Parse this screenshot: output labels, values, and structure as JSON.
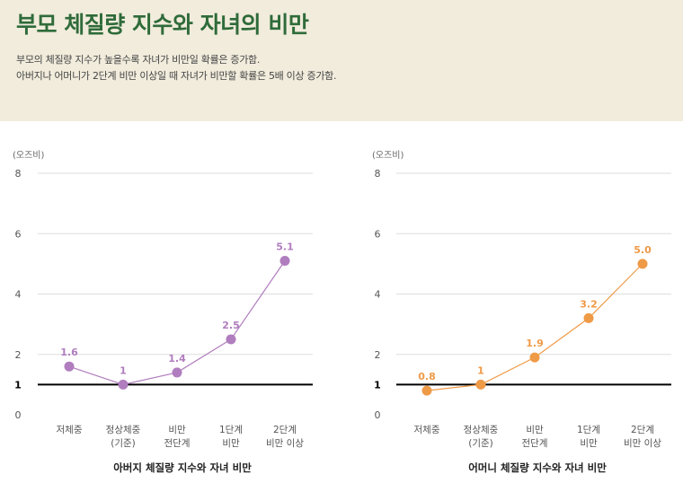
{
  "header": {
    "title": "부모 체질량 지수와 자녀의 비만",
    "desc_line1": "부모의 체질량 지수가 높을수록 자녀가 비만일 확률은 증가함.",
    "desc_line2": "아버지나 어머니가 2단계 비만 이상일 때 자녀가 비만할 확률은 5배 이상 증가함."
  },
  "colors": {
    "header_bg": "#f1ecdc",
    "title": "#2f6b3a",
    "father_series": "#b07dbe",
    "mother_series": "#ef9a47",
    "reference_line": "#000000",
    "grid": "#dddddd"
  },
  "chart_data": [
    {
      "type": "line",
      "title": "아버지 체질량 지수와 자녀 비만",
      "ylabel": "(오즈비)",
      "ylim": [
        0,
        8
      ],
      "yticks": [
        "0",
        "1",
        "2",
        "4",
        "6",
        "8"
      ],
      "reference_line": 1,
      "categories": [
        [
          "저체중"
        ],
        [
          "정상체중",
          "(기준)"
        ],
        [
          "비만",
          "전단계"
        ],
        [
          "1단계",
          "비만"
        ],
        [
          "2단계",
          "비만 이상"
        ]
      ],
      "values": [
        1.6,
        1,
        1.4,
        2.5,
        5.1
      ],
      "value_labels": [
        "1.6",
        "1",
        "1.4",
        "2.5",
        "5.1"
      ],
      "color": "#b07dbe"
    },
    {
      "type": "line",
      "title": "어머니 체질량 지수와 자녀 비만",
      "ylabel": "(오즈비)",
      "ylim": [
        0,
        8
      ],
      "yticks": [
        "0",
        "1",
        "2",
        "4",
        "6",
        "8"
      ],
      "reference_line": 1,
      "categories": [
        [
          "저체중"
        ],
        [
          "정상체중",
          "(기준)"
        ],
        [
          "비만",
          "전단계"
        ],
        [
          "1단계",
          "비만"
        ],
        [
          "2단계",
          "비만 이상"
        ]
      ],
      "values": [
        0.8,
        1,
        1.9,
        3.2,
        5.0
      ],
      "value_labels": [
        "0.8",
        "1",
        "1.9",
        "3.2",
        "5.0"
      ],
      "color": "#ef9a47"
    }
  ]
}
